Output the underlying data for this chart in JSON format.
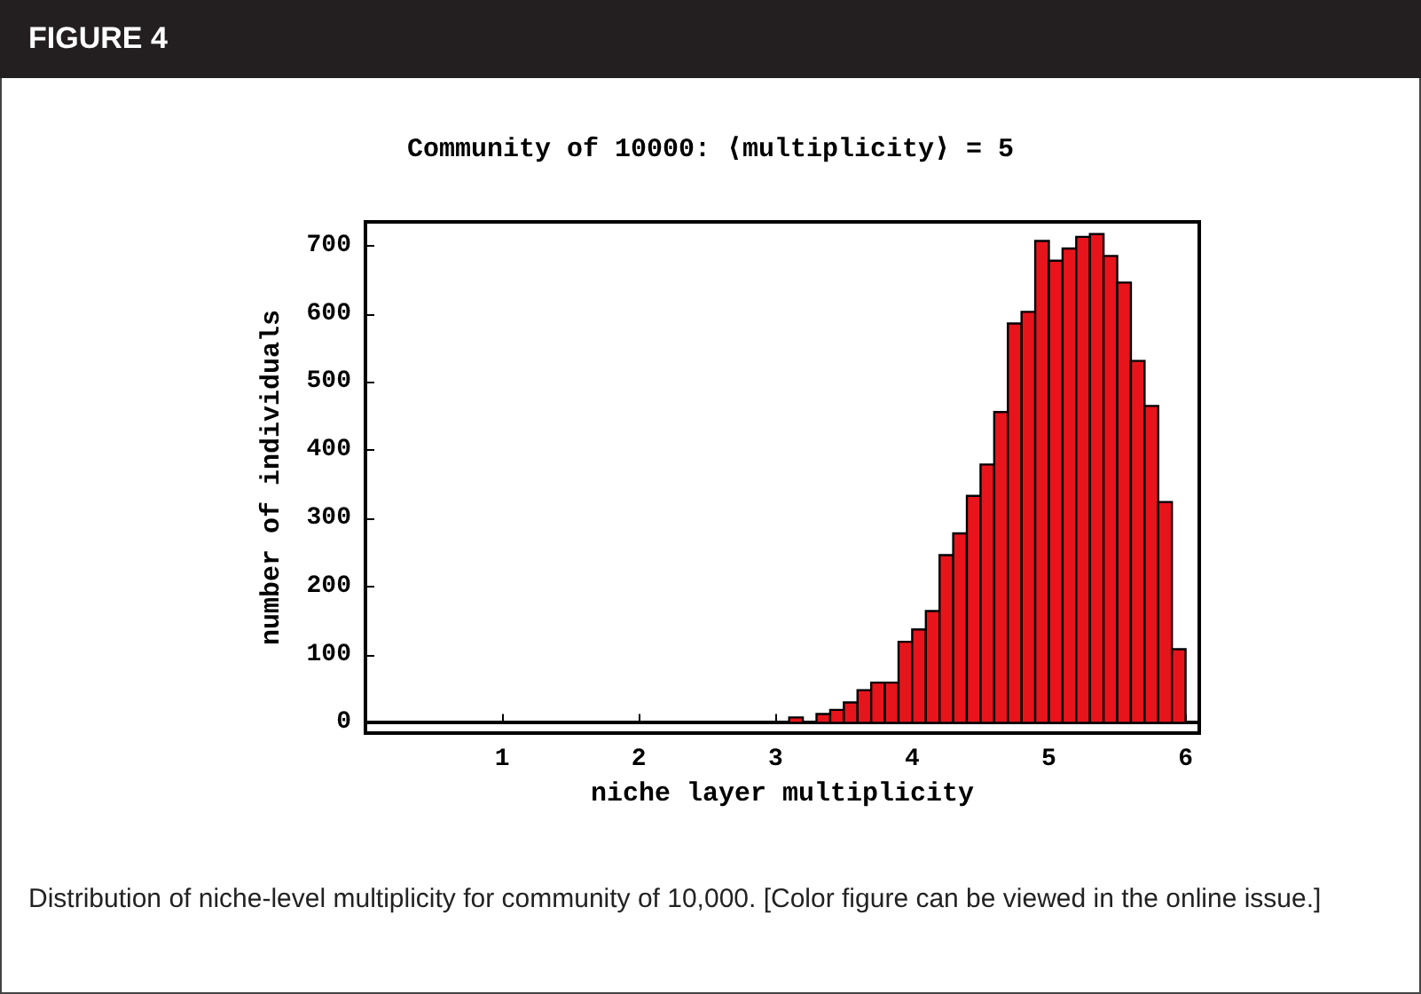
{
  "chart_data": {
    "type": "histogram",
    "title": "FIGURE 4",
    "subtitle": "Community of 10000: ⟨multiplicity⟩ = 5",
    "xlabel": "niche layer multiplicity",
    "ylabel": "number of individuals",
    "annotations": [
      "Distribution of niche-level multiplicity for community of 10,000. [Color figure can be viewed in the online issue.]"
    ],
    "bins": [
      2.8,
      2.9,
      3.0,
      3.1,
      3.2,
      3.3,
      3.4,
      3.5,
      3.6,
      3.7,
      3.8,
      3.9,
      4.0,
      4.1,
      4.2,
      4.3,
      4.4,
      4.5,
      4.6,
      4.7,
      4.8,
      4.9,
      5.0,
      5.1,
      5.2,
      5.3,
      5.4,
      5.5,
      5.6,
      5.7,
      5.8,
      5.9,
      6.0
    ],
    "values": [
      null,
      null,
      null,
      8,
      null,
      13,
      19,
      30,
      48,
      59,
      59,
      119,
      137,
      164,
      246,
      278,
      333,
      379,
      456,
      586,
      603,
      707,
      678,
      696,
      713,
      717,
      685,
      646,
      531,
      465,
      324,
      108
    ],
    "color": "#e8141c",
    "xlim": [
      0,
      6.1
    ],
    "ylim": [
      -15,
      735
    ],
    "xticks": [
      1,
      2,
      3,
      4,
      5,
      6
    ],
    "yticks": [
      0,
      100,
      200,
      300,
      400,
      500,
      600,
      700
    ]
  }
}
